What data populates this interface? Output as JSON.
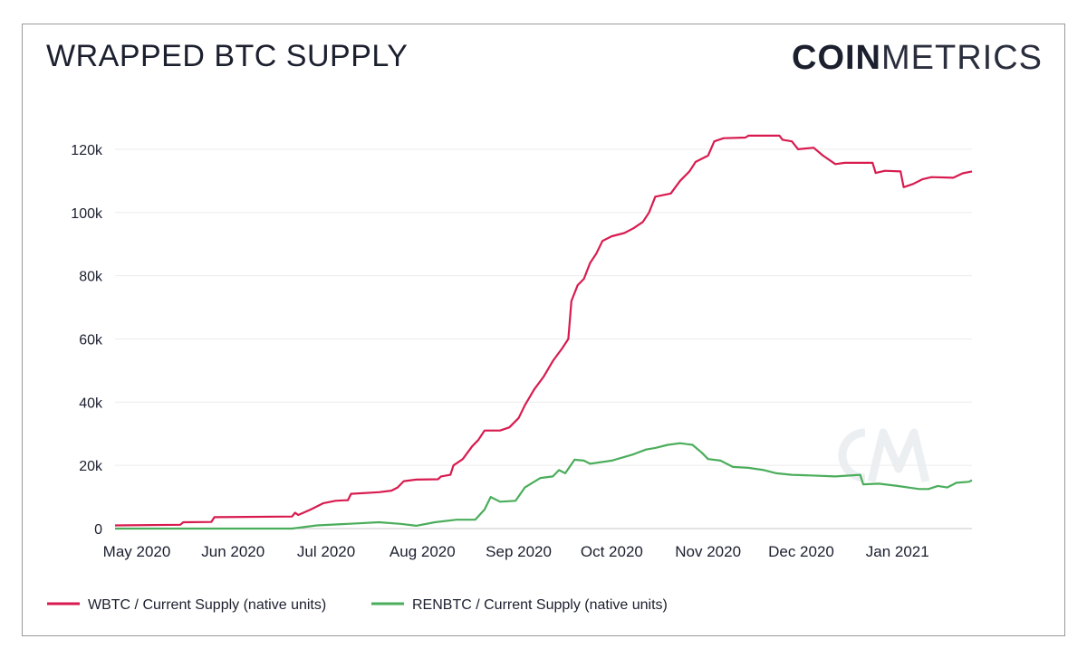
{
  "header": {
    "title": "WRAPPED BTC SUPPLY",
    "logo_bold": "COIN",
    "logo_light": "METRICS"
  },
  "chart_data": {
    "type": "line",
    "title": "WRAPPED BTC SUPPLY",
    "xlabel": "",
    "ylabel": "",
    "ylim": [
      0,
      130000
    ],
    "xlim": [
      "2020-04-24",
      "2021-01-25"
    ],
    "y_ticks": [
      0,
      20000,
      40000,
      60000,
      80000,
      100000,
      120000
    ],
    "y_tick_labels": [
      "0",
      "20k",
      "40k",
      "60k",
      "80k",
      "100k",
      "120k"
    ],
    "x_ticks": [
      "2020-05-01",
      "2020-06-01",
      "2020-07-01",
      "2020-08-01",
      "2020-09-01",
      "2020-10-01",
      "2020-11-01",
      "2020-12-01",
      "2021-01-01"
    ],
    "x_tick_labels": [
      "May 2020",
      "Jun 2020",
      "Jul 2020",
      "Aug 2020",
      "Sep 2020",
      "Oct 2020",
      "Nov 2020",
      "Dec 2020",
      "Jan 2021"
    ],
    "grid": true,
    "legend_position": "bottom-left",
    "series": [
      {
        "name": "WBTC / Current Supply (native units)",
        "color": "#d81b4f",
        "points": [
          [
            "2020-04-24",
            1000
          ],
          [
            "2020-05-15",
            1200
          ],
          [
            "2020-05-16",
            2000
          ],
          [
            "2020-05-25",
            2100
          ],
          [
            "2020-05-26",
            3600
          ],
          [
            "2020-06-20",
            3800
          ],
          [
            "2020-06-21",
            5000
          ],
          [
            "2020-06-22",
            4300
          ],
          [
            "2020-06-26",
            6000
          ],
          [
            "2020-06-30",
            8000
          ],
          [
            "2020-07-04",
            8800
          ],
          [
            "2020-07-08",
            9000
          ],
          [
            "2020-07-09",
            11000
          ],
          [
            "2020-07-18",
            11500
          ],
          [
            "2020-07-22",
            12000
          ],
          [
            "2020-07-24",
            13000
          ],
          [
            "2020-07-26",
            15000
          ],
          [
            "2020-07-30",
            15500
          ],
          [
            "2020-08-06",
            15600
          ],
          [
            "2020-08-07",
            16500
          ],
          [
            "2020-08-10",
            17000
          ],
          [
            "2020-08-11",
            20000
          ],
          [
            "2020-08-14",
            22000
          ],
          [
            "2020-08-17",
            26000
          ],
          [
            "2020-08-19",
            28000
          ],
          [
            "2020-08-21",
            31000
          ],
          [
            "2020-08-26",
            31000
          ],
          [
            "2020-08-29",
            32000
          ],
          [
            "2020-09-01",
            35000
          ],
          [
            "2020-09-03",
            39000
          ],
          [
            "2020-09-06",
            44000
          ],
          [
            "2020-09-09",
            48000
          ],
          [
            "2020-09-12",
            53000
          ],
          [
            "2020-09-15",
            57000
          ],
          [
            "2020-09-17",
            60000
          ],
          [
            "2020-09-18",
            72000
          ],
          [
            "2020-09-20",
            77000
          ],
          [
            "2020-09-22",
            79000
          ],
          [
            "2020-09-24",
            84000
          ],
          [
            "2020-09-26",
            87000
          ],
          [
            "2020-09-28",
            91000
          ],
          [
            "2020-10-01",
            92500
          ],
          [
            "2020-10-05",
            93500
          ],
          [
            "2020-10-08",
            95000
          ],
          [
            "2020-10-11",
            97000
          ],
          [
            "2020-10-13",
            100000
          ],
          [
            "2020-10-15",
            105000
          ],
          [
            "2020-10-20",
            106000
          ],
          [
            "2020-10-23",
            110000
          ],
          [
            "2020-10-26",
            113000
          ],
          [
            "2020-10-28",
            116000
          ],
          [
            "2020-11-01",
            118000
          ],
          [
            "2020-11-03",
            122500
          ],
          [
            "2020-11-06",
            123500
          ],
          [
            "2020-11-13",
            123700
          ],
          [
            "2020-11-14",
            124300
          ],
          [
            "2020-11-24",
            124300
          ],
          [
            "2020-11-25",
            123000
          ],
          [
            "2020-11-28",
            122500
          ],
          [
            "2020-11-30",
            120000
          ],
          [
            "2020-12-05",
            120500
          ],
          [
            "2020-12-08",
            118000
          ],
          [
            "2020-12-12",
            115300
          ],
          [
            "2020-12-15",
            115700
          ],
          [
            "2020-12-24",
            115700
          ],
          [
            "2020-12-25",
            112500
          ],
          [
            "2020-12-28",
            113200
          ],
          [
            "2021-01-02",
            113000
          ],
          [
            "2021-01-03",
            108000
          ],
          [
            "2021-01-06",
            109000
          ],
          [
            "2021-01-09",
            110500
          ],
          [
            "2021-01-12",
            111200
          ],
          [
            "2021-01-19",
            111000
          ],
          [
            "2021-01-22",
            112400
          ],
          [
            "2021-01-25",
            113000
          ]
        ]
      },
      {
        "name": "RENBTC / Current Supply (native units)",
        "color": "#4aad5b",
        "points": [
          [
            "2020-04-24",
            0
          ],
          [
            "2020-06-20",
            0
          ],
          [
            "2020-06-28",
            1000
          ],
          [
            "2020-07-08",
            1500
          ],
          [
            "2020-07-18",
            2000
          ],
          [
            "2020-07-25",
            1500
          ],
          [
            "2020-07-30",
            900
          ],
          [
            "2020-08-05",
            2000
          ],
          [
            "2020-08-12",
            2800
          ],
          [
            "2020-08-18",
            2800
          ],
          [
            "2020-08-21",
            6000
          ],
          [
            "2020-08-23",
            10000
          ],
          [
            "2020-08-26",
            8500
          ],
          [
            "2020-08-31",
            8800
          ],
          [
            "2020-09-03",
            13000
          ],
          [
            "2020-09-08",
            16000
          ],
          [
            "2020-09-12",
            16500
          ],
          [
            "2020-09-14",
            18500
          ],
          [
            "2020-09-16",
            17500
          ],
          [
            "2020-09-19",
            21800
          ],
          [
            "2020-09-22",
            21500
          ],
          [
            "2020-09-24",
            20500
          ],
          [
            "2020-10-01",
            21500
          ],
          [
            "2020-10-08",
            23500
          ],
          [
            "2020-10-12",
            25000
          ],
          [
            "2020-10-15",
            25500
          ],
          [
            "2020-10-19",
            26500
          ],
          [
            "2020-10-23",
            27000
          ],
          [
            "2020-10-27",
            26500
          ],
          [
            "2020-10-30",
            24000
          ],
          [
            "2020-11-01",
            22000
          ],
          [
            "2020-11-05",
            21500
          ],
          [
            "2020-11-09",
            19500
          ],
          [
            "2020-11-14",
            19200
          ],
          [
            "2020-11-19",
            18500
          ],
          [
            "2020-11-23",
            17500
          ],
          [
            "2020-11-28",
            17000
          ],
          [
            "2020-12-04",
            16800
          ],
          [
            "2020-12-12",
            16500
          ],
          [
            "2020-12-20",
            17000
          ],
          [
            "2020-12-21",
            14000
          ],
          [
            "2020-12-26",
            14200
          ],
          [
            "2021-01-01",
            13500
          ],
          [
            "2021-01-08",
            12500
          ],
          [
            "2021-01-11",
            12500
          ],
          [
            "2021-01-14",
            13500
          ],
          [
            "2021-01-17",
            13000
          ],
          [
            "2021-01-20",
            14500
          ],
          [
            "2021-01-24",
            14800
          ],
          [
            "2021-01-25",
            15300
          ]
        ]
      }
    ]
  }
}
